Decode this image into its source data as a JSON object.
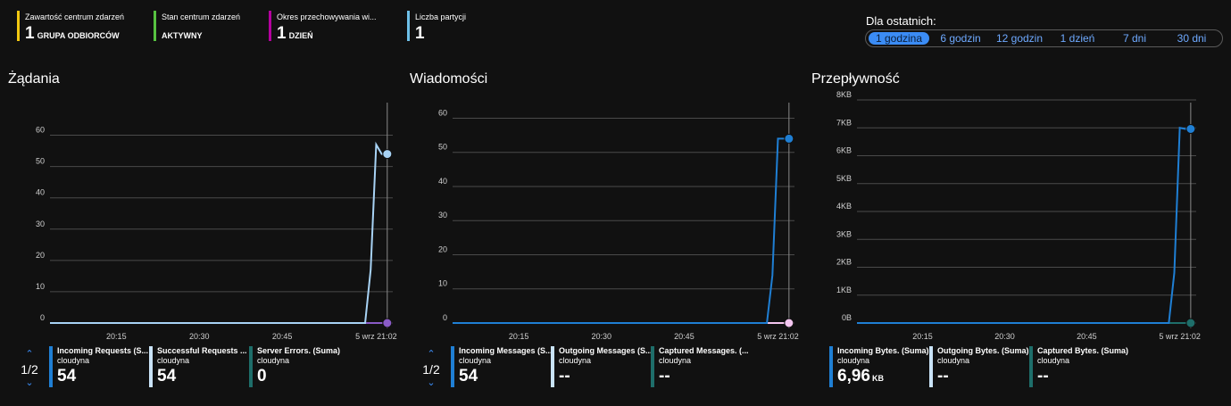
{
  "tiles": [
    {
      "label": "Zawartość centrum zdarzeń",
      "value": "1",
      "unit": "GRUPA ODBIORCÓW",
      "color": "#f2c811"
    },
    {
      "label": "Stan centrum zdarzeń",
      "value": "",
      "unit": "AKTYWNY",
      "color": "#57c341"
    },
    {
      "label": "Okres przechowywania wi...",
      "value": "1",
      "unit": "DZIEŃ",
      "color": "#b4009e"
    },
    {
      "label": "Liczba partycji",
      "value": "1",
      "unit": "",
      "color": "#6ec0e8"
    }
  ],
  "time_range": {
    "title": "Dla ostatnich:",
    "options": [
      "1 godzina",
      "6 godzin",
      "12 godzin",
      "1 dzień",
      "7 dni",
      "30 dni"
    ],
    "selected": "1 godzina"
  },
  "sections": {
    "requests": {
      "title": "Żądania"
    },
    "messages": {
      "title": "Wiadomości"
    },
    "throughput": {
      "title": "Przepływność"
    }
  },
  "chart_data": [
    {
      "type": "line",
      "title": "Żądania",
      "x_ticks": [
        "20:15",
        "20:30",
        "20:45",
        "5 wrz 21:02"
      ],
      "y_ticks": [
        "0",
        "10",
        "20",
        "30",
        "40",
        "50",
        "60"
      ],
      "ylim": [
        0,
        65
      ],
      "x_minutes": [
        0,
        57,
        58,
        59,
        60,
        61
      ],
      "cursor_minute": 61,
      "x_tick_minutes": [
        12,
        27,
        42,
        59
      ],
      "series": [
        {
          "name": "Successful Requests (Suma)",
          "color": "#a8d3f5",
          "values": [
            0,
            0,
            17,
            57,
            54,
            54
          ]
        },
        {
          "name": "Server Errors. (Suma)",
          "color": "#8a5bc7",
          "values": [
            0,
            0,
            0,
            0,
            0,
            0
          ]
        }
      ]
    },
    {
      "type": "line",
      "title": "Wiadomości",
      "x_ticks": [
        "20:15",
        "20:30",
        "20:45",
        "5 wrz 21:02"
      ],
      "y_ticks": [
        "0",
        "10",
        "20",
        "30",
        "40",
        "50",
        "60"
      ],
      "ylim": [
        0,
        63
      ],
      "x_minutes": [
        0,
        57,
        58,
        59,
        60,
        61
      ],
      "cursor_minute": 61,
      "x_tick_minutes": [
        12,
        27,
        42,
        59
      ],
      "series": [
        {
          "name": "Incoming Messages (Suma)",
          "color": "#1f7fd4",
          "values": [
            0,
            0,
            14,
            54,
            54,
            54
          ]
        },
        {
          "name": "Outgoing Messages (Suma)",
          "color": "#f4c6f0",
          "values": [
            0,
            0,
            0,
            0,
            0,
            0
          ]
        }
      ]
    },
    {
      "type": "line",
      "title": "Przepływność",
      "x_ticks": [
        "20:15",
        "20:30",
        "20:45",
        "5 wrz 21:02"
      ],
      "y_ticks": [
        "0B",
        "1KB",
        "2KB",
        "3KB",
        "4KB",
        "5KB",
        "6KB",
        "7KB",
        "8KB"
      ],
      "ylim": [
        0,
        8
      ],
      "x_minutes": [
        0,
        57,
        58,
        59,
        60,
        61
      ],
      "cursor_minute": 61,
      "x_tick_minutes": [
        12,
        27,
        42,
        59
      ],
      "series": [
        {
          "name": "Incoming Bytes. (Suma)",
          "color": "#1f7fd4",
          "values": [
            0,
            0,
            1.8,
            7.0,
            6.96,
            6.96
          ]
        },
        {
          "name": "Captured Bytes. (Suma)",
          "color": "#1e6e6a",
          "values": [
            0,
            0,
            0,
            0,
            0,
            0
          ]
        }
      ]
    }
  ],
  "legends": {
    "requests": {
      "page": "1/2",
      "items": [
        {
          "name": "Incoming Requests (S...",
          "sub": "cloudyna",
          "value": "54",
          "unit": "",
          "color": "#1f7fd4"
        },
        {
          "name": "Successful Requests ...",
          "sub": "cloudyna",
          "value": "54",
          "unit": "",
          "color": "#c9e3f7"
        },
        {
          "name": "Server Errors. (Suma)",
          "sub": "cloudyna",
          "value": "0",
          "unit": "",
          "color": "#1e6e6a"
        }
      ]
    },
    "messages": {
      "page": "1/2",
      "items": [
        {
          "name": "Incoming Messages (S...",
          "sub": "cloudyna",
          "value": "54",
          "unit": "",
          "color": "#1f7fd4"
        },
        {
          "name": "Outgoing Messages (S...",
          "sub": "cloudyna",
          "value": "--",
          "unit": "",
          "color": "#c9e3f7"
        },
        {
          "name": "Captured Messages. (...",
          "sub": "cloudyna",
          "value": "--",
          "unit": "",
          "color": "#1e6e6a"
        }
      ]
    },
    "throughput": {
      "items": [
        {
          "name": "Incoming Bytes. (Suma)",
          "sub": "cloudyna",
          "value": "6,96",
          "unit": "KB",
          "color": "#1f7fd4"
        },
        {
          "name": "Outgoing Bytes. (Suma)",
          "sub": "cloudyna",
          "value": "--",
          "unit": "",
          "color": "#c9e3f7"
        },
        {
          "name": "Captured Bytes. (Suma)",
          "sub": "cloudyna",
          "value": "--",
          "unit": "",
          "color": "#1e6e6a"
        }
      ]
    }
  }
}
